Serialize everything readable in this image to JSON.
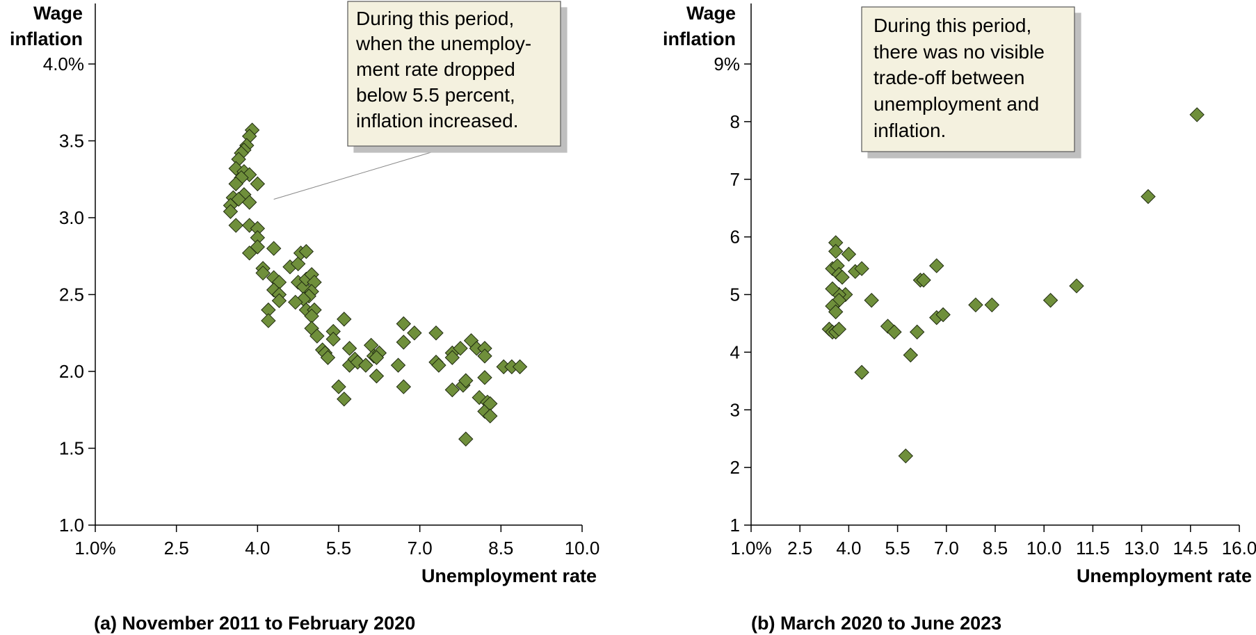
{
  "chart_data": [
    {
      "type": "scatter",
      "caption": "(a) November 2011 to February 2020",
      "ylabel_line1": "Wage",
      "ylabel_line2": "inflation",
      "xlabel": "Unemployment rate",
      "xlim": [
        1.0,
        10.0
      ],
      "ylim": [
        1.0,
        4.0
      ],
      "x_ticks": [
        1.0,
        2.5,
        4.0,
        5.5,
        7.0,
        8.5,
        10.0
      ],
      "x_tick_labels": [
        "1.0%",
        "2.5",
        "4.0",
        "5.5",
        "7.0",
        "8.5",
        "10.0"
      ],
      "y_ticks": [
        1.0,
        1.5,
        2.0,
        2.5,
        3.0,
        3.5,
        4.0
      ],
      "y_tick_labels": [
        "1.0",
        "1.5",
        "2.0",
        "2.5",
        "3.0",
        "3.5",
        "4.0%"
      ],
      "marker_color": "#6f8f3b",
      "annotation": {
        "lines": [
          "During this period,",
          "when the unemploy-",
          "ment rate dropped",
          "below 5.5 percent,",
          "inflation increased."
        ],
        "pointer_to": [
          4.3,
          3.12
        ]
      },
      "points": [
        [
          3.9,
          3.57
        ],
        [
          3.85,
          3.53
        ],
        [
          3.8,
          3.47
        ],
        [
          3.75,
          3.44
        ],
        [
          3.7,
          3.42
        ],
        [
          3.65,
          3.38
        ],
        [
          3.6,
          3.32
        ],
        [
          3.75,
          3.3
        ],
        [
          3.85,
          3.28
        ],
        [
          3.7,
          3.26
        ],
        [
          3.6,
          3.22
        ],
        [
          4.0,
          3.22
        ],
        [
          3.75,
          3.15
        ],
        [
          3.55,
          3.13
        ],
        [
          3.65,
          3.12
        ],
        [
          3.85,
          3.1
        ],
        [
          3.5,
          3.08
        ],
        [
          3.5,
          3.04
        ],
        [
          3.6,
          2.95
        ],
        [
          3.85,
          2.95
        ],
        [
          4.0,
          2.93
        ],
        [
          4.0,
          2.87
        ],
        [
          4.0,
          2.81
        ],
        [
          4.3,
          2.8
        ],
        [
          3.85,
          2.77
        ],
        [
          4.1,
          2.67
        ],
        [
          4.1,
          2.64
        ],
        [
          4.3,
          2.61
        ],
        [
          4.4,
          2.58
        ],
        [
          4.3,
          2.53
        ],
        [
          4.4,
          2.5
        ],
        [
          4.4,
          2.46
        ],
        [
          4.2,
          2.4
        ],
        [
          4.2,
          2.33
        ],
        [
          4.6,
          2.68
        ],
        [
          4.75,
          2.7
        ],
        [
          4.8,
          2.77
        ],
        [
          4.9,
          2.78
        ],
        [
          4.75,
          2.58
        ],
        [
          4.85,
          2.55
        ],
        [
          4.9,
          2.6
        ],
        [
          5.0,
          2.63
        ],
        [
          5.05,
          2.58
        ],
        [
          5.0,
          2.52
        ],
        [
          4.95,
          2.49
        ],
        [
          4.85,
          2.47
        ],
        [
          4.7,
          2.45
        ],
        [
          4.9,
          2.4
        ],
        [
          5.05,
          2.4
        ],
        [
          5.0,
          2.36
        ],
        [
          5.0,
          2.28
        ],
        [
          5.1,
          2.23
        ],
        [
          5.2,
          2.14
        ],
        [
          5.25,
          2.12
        ],
        [
          5.3,
          2.09
        ],
        [
          5.4,
          2.26
        ],
        [
          5.4,
          2.21
        ],
        [
          5.6,
          2.34
        ],
        [
          5.7,
          2.15
        ],
        [
          5.7,
          2.04
        ],
        [
          5.8,
          2.08
        ],
        [
          5.85,
          2.06
        ],
        [
          6.0,
          2.04
        ],
        [
          6.1,
          2.17
        ],
        [
          6.15,
          2.1
        ],
        [
          6.25,
          2.12
        ],
        [
          6.2,
          2.09
        ],
        [
          6.2,
          1.97
        ],
        [
          5.5,
          1.9
        ],
        [
          5.6,
          1.82
        ],
        [
          6.6,
          2.04
        ],
        [
          6.7,
          2.31
        ],
        [
          6.7,
          2.19
        ],
        [
          6.9,
          2.25
        ],
        [
          6.7,
          1.9
        ],
        [
          7.3,
          2.25
        ],
        [
          7.3,
          2.06
        ],
        [
          7.35,
          2.04
        ],
        [
          7.6,
          2.12
        ],
        [
          7.6,
          2.09
        ],
        [
          7.6,
          1.88
        ],
        [
          7.75,
          2.15
        ],
        [
          7.8,
          1.91
        ],
        [
          7.85,
          1.94
        ],
        [
          7.95,
          2.2
        ],
        [
          8.05,
          2.15
        ],
        [
          8.2,
          2.15
        ],
        [
          8.2,
          2.1
        ],
        [
          8.2,
          1.96
        ],
        [
          8.1,
          1.83
        ],
        [
          8.25,
          1.8
        ],
        [
          8.2,
          1.74
        ],
        [
          8.3,
          1.79
        ],
        [
          8.3,
          1.71
        ],
        [
          8.55,
          2.03
        ],
        [
          8.7,
          2.03
        ],
        [
          8.85,
          2.03
        ],
        [
          7.85,
          1.56
        ]
      ]
    },
    {
      "type": "scatter",
      "caption": "(b) March 2020 to June 2023",
      "ylabel_line1": "Wage",
      "ylabel_line2": "inflation",
      "xlabel": "Unemployment rate",
      "xlim": [
        1.0,
        16.0
      ],
      "ylim": [
        1,
        9
      ],
      "x_ticks": [
        1.0,
        2.5,
        4.0,
        5.5,
        7.0,
        8.5,
        10.0,
        11.5,
        13.0,
        14.5,
        16.0
      ],
      "x_tick_labels": [
        "1.0%",
        "2.5",
        "4.0",
        "5.5",
        "7.0",
        "8.5",
        "10.0",
        "11.5",
        "13.0",
        "14.5",
        "16.0"
      ],
      "y_ticks": [
        1,
        2,
        3,
        4,
        5,
        6,
        7,
        8,
        9
      ],
      "y_tick_labels": [
        "1",
        "2",
        "3",
        "4",
        "5",
        "6",
        "7",
        "8",
        "9%"
      ],
      "marker_color": "#6f8f3b",
      "annotation": {
        "lines": [
          "During this period,",
          "there was no visible",
          "trade-off between",
          "unemployment and",
          "inflation."
        ]
      },
      "points": [
        [
          3.6,
          5.9
        ],
        [
          3.6,
          5.75
        ],
        [
          3.5,
          5.45
        ],
        [
          3.65,
          5.5
        ],
        [
          3.7,
          5.35
        ],
        [
          3.8,
          5.3
        ],
        [
          3.9,
          5.0
        ],
        [
          3.7,
          5.0
        ],
        [
          3.5,
          5.1
        ],
        [
          3.7,
          4.9
        ],
        [
          3.5,
          4.8
        ],
        [
          3.6,
          4.7
        ],
        [
          3.4,
          4.4
        ],
        [
          3.5,
          4.35
        ],
        [
          3.6,
          4.35
        ],
        [
          3.7,
          4.4
        ],
        [
          4.0,
          5.7
        ],
        [
          4.2,
          5.4
        ],
        [
          4.4,
          5.45
        ],
        [
          4.7,
          4.9
        ],
        [
          4.4,
          3.65
        ],
        [
          5.2,
          4.45
        ],
        [
          5.4,
          4.35
        ],
        [
          5.9,
          3.95
        ],
        [
          5.75,
          2.2
        ],
        [
          6.1,
          4.35
        ],
        [
          6.2,
          5.25
        ],
        [
          6.3,
          5.25
        ],
        [
          6.7,
          5.5
        ],
        [
          6.7,
          4.6
        ],
        [
          6.9,
          4.65
        ],
        [
          7.9,
          4.82
        ],
        [
          8.4,
          4.82
        ],
        [
          10.2,
          4.9
        ],
        [
          11.0,
          5.15
        ],
        [
          13.2,
          6.7
        ],
        [
          14.7,
          8.12
        ]
      ]
    }
  ]
}
